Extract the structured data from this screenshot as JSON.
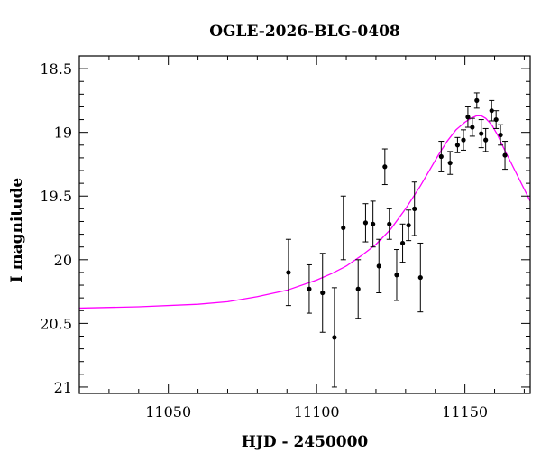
{
  "chart_data": {
    "type": "scatter",
    "title": "OGLE-2026-BLG-0408",
    "xlabel": "HJD - 2450000",
    "ylabel": "I magnitude",
    "xlim": [
      11020,
      11172
    ],
    "ylim": [
      21.05,
      18.4
    ],
    "y_inverted": true,
    "grid": false,
    "x_ticks": [
      11050,
      11100,
      11150
    ],
    "x_tick_labels": [
      "11050",
      "11100",
      "11150"
    ],
    "y_ticks": [
      18.5,
      19,
      19.5,
      20,
      20.5,
      21
    ],
    "y_tick_labels": [
      "18.5",
      "19",
      "19.5",
      "20",
      "20.5",
      "21"
    ],
    "colors": {
      "points": "#000000",
      "model": "#ff00ff"
    },
    "series": [
      {
        "type": "scatter_errorbar",
        "points": [
          {
            "x": 11090.5,
            "y": 20.1,
            "err": 0.26
          },
          {
            "x": 11097.5,
            "y": 20.23,
            "err": 0.19
          },
          {
            "x": 11102.0,
            "y": 20.26,
            "err": 0.31
          },
          {
            "x": 11106.0,
            "y": 20.61,
            "err": 0.39
          },
          {
            "x": 11109.0,
            "y": 19.75,
            "err": 0.25
          },
          {
            "x": 11114.0,
            "y": 20.23,
            "err": 0.23
          },
          {
            "x": 11116.5,
            "y": 19.71,
            "err": 0.15
          },
          {
            "x": 11119.0,
            "y": 19.72,
            "err": 0.18
          },
          {
            "x": 11121.0,
            "y": 20.05,
            "err": 0.21
          },
          {
            "x": 11123.0,
            "y": 19.27,
            "err": 0.14
          },
          {
            "x": 11124.5,
            "y": 19.72,
            "err": 0.12
          },
          {
            "x": 11127.0,
            "y": 20.12,
            "err": 0.2
          },
          {
            "x": 11129.0,
            "y": 19.87,
            "err": 0.15
          },
          {
            "x": 11131.0,
            "y": 19.73,
            "err": 0.12
          },
          {
            "x": 11133.0,
            "y": 19.6,
            "err": 0.21
          },
          {
            "x": 11135.0,
            "y": 20.14,
            "err": 0.27
          },
          {
            "x": 11142.0,
            "y": 19.19,
            "err": 0.12
          },
          {
            "x": 11145.0,
            "y": 19.24,
            "err": 0.09
          },
          {
            "x": 11147.5,
            "y": 19.1,
            "err": 0.06
          },
          {
            "x": 11149.5,
            "y": 19.06,
            "err": 0.08
          },
          {
            "x": 11151.0,
            "y": 18.88,
            "err": 0.08
          },
          {
            "x": 11152.5,
            "y": 18.96,
            "err": 0.07
          },
          {
            "x": 11154.0,
            "y": 18.75,
            "err": 0.06
          },
          {
            "x": 11155.5,
            "y": 19.01,
            "err": 0.11
          },
          {
            "x": 11157.0,
            "y": 19.06,
            "err": 0.09
          },
          {
            "x": 11159.0,
            "y": 18.83,
            "err": 0.08
          },
          {
            "x": 11160.5,
            "y": 18.9,
            "err": 0.07
          },
          {
            "x": 11162.0,
            "y": 19.02,
            "err": 0.08
          },
          {
            "x": 11163.5,
            "y": 19.18,
            "err": 0.11
          }
        ]
      },
      {
        "type": "line",
        "x": [
          11020,
          11040,
          11060,
          11070,
          11080,
          11090,
          11100,
          11105,
          11110,
          11115,
          11120,
          11125,
          11130,
          11135,
          11138,
          11141,
          11144,
          11147,
          11150,
          11152,
          11154,
          11155.5,
          11157,
          11159,
          11161,
          11163,
          11166,
          11169,
          11172
        ],
        "y": [
          20.38,
          20.37,
          20.35,
          20.33,
          20.29,
          20.24,
          20.16,
          20.11,
          20.05,
          19.97,
          19.88,
          19.76,
          19.6,
          19.42,
          19.3,
          19.18,
          19.07,
          18.98,
          18.92,
          18.89,
          18.87,
          18.87,
          18.89,
          18.94,
          19.02,
          19.12,
          19.26,
          19.4,
          19.54
        ]
      }
    ]
  }
}
